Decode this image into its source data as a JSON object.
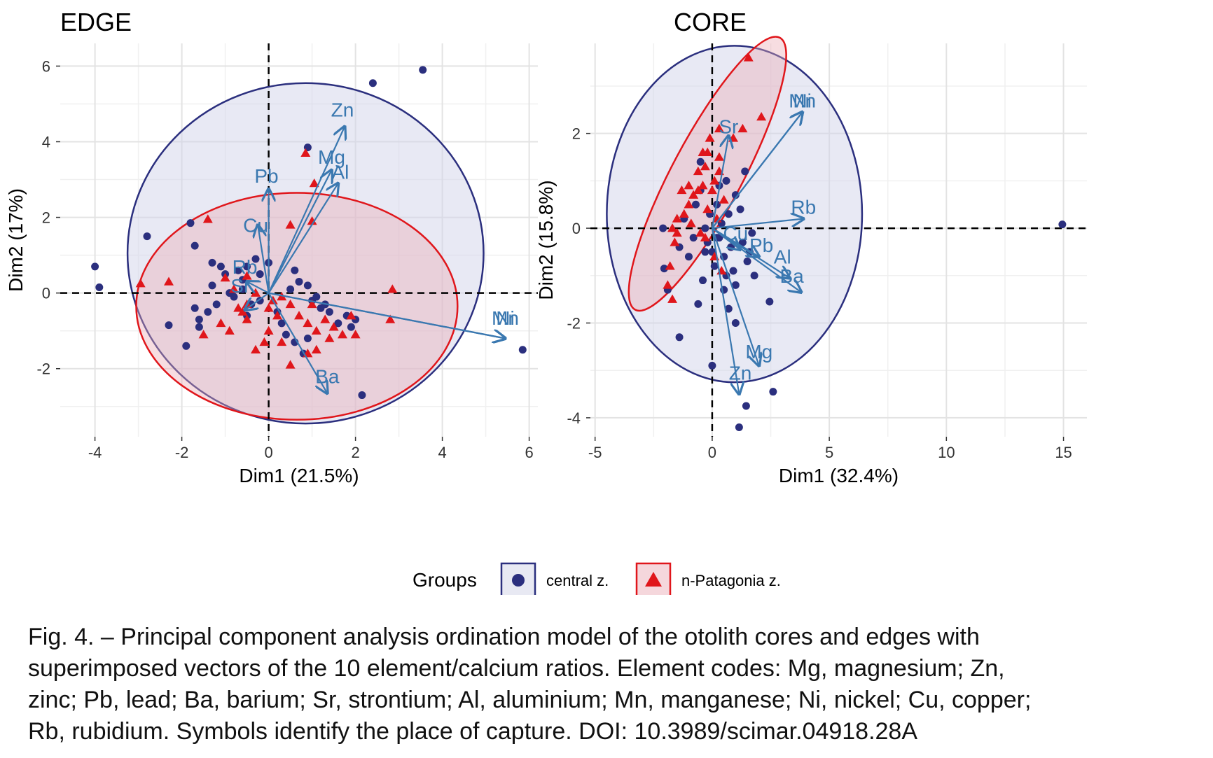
{
  "figure": {
    "legend": {
      "title": "Groups",
      "items": [
        {
          "label": "central z.",
          "color": "#2b2f7e",
          "fill": "#e8e9f3",
          "shape": "circle"
        },
        {
          "label": "n-Patagonia z.",
          "color": "#e0161b",
          "fill": "#f5d7dc",
          "shape": "triangle"
        }
      ]
    }
  },
  "chart_data": [
    {
      "type": "scatter",
      "title": "EDGE",
      "xlabel": "Dim1 (21.5%)",
      "ylabel": "Dim2 (17%)",
      "xlim": [
        -4.8,
        6.2
      ],
      "ylim": [
        -3.8,
        6.6
      ],
      "xticks": [
        -4,
        -2,
        0,
        2,
        4,
        6
      ],
      "yticks": [
        -2,
        0,
        2,
        4,
        6
      ],
      "xtick_labels": [
        "-4",
        "-2",
        "0",
        "2",
        "4",
        "6"
      ],
      "ytick_labels": [
        "-2",
        "0",
        "2",
        "4",
        "6"
      ],
      "grid": true,
      "series": [
        {
          "name": "central z.",
          "marker": "circle",
          "color": "#2b2f7e",
          "points": [
            [
              3.55,
              5.9
            ],
            [
              2.4,
              5.55
            ],
            [
              0.9,
              3.85
            ],
            [
              -2.8,
              1.5
            ],
            [
              -4.0,
              0.7
            ],
            [
              -3.9,
              0.15
            ],
            [
              -1.8,
              1.85
            ],
            [
              -1.7,
              1.25
            ],
            [
              -1.3,
              0.8
            ],
            [
              -1.1,
              0.7
            ],
            [
              -1.0,
              0.5
            ],
            [
              -0.7,
              0.6
            ],
            [
              -0.6,
              0.35
            ],
            [
              -0.5,
              0.7
            ],
            [
              -0.3,
              0.9
            ],
            [
              -0.2,
              0.5
            ],
            [
              0.0,
              0.8
            ],
            [
              0.5,
              0.1
            ],
            [
              0.6,
              0.6
            ],
            [
              0.7,
              0.3
            ],
            [
              0.9,
              0.2
            ],
            [
              1.0,
              -0.2
            ],
            [
              1.1,
              -0.1
            ],
            [
              1.2,
              -0.4
            ],
            [
              1.3,
              -0.3
            ],
            [
              1.4,
              -0.5
            ],
            [
              1.6,
              -0.8
            ],
            [
              1.8,
              -0.6
            ],
            [
              1.9,
              -0.9
            ],
            [
              2.0,
              -0.7
            ],
            [
              0.2,
              -0.5
            ],
            [
              0.3,
              -0.8
            ],
            [
              0.4,
              -1.1
            ],
            [
              0.6,
              -1.3
            ],
            [
              0.8,
              -1.6
            ],
            [
              0.9,
              -1.2
            ],
            [
              -0.2,
              -0.2
            ],
            [
              -0.4,
              -0.3
            ],
            [
              -0.5,
              -0.6
            ],
            [
              -0.8,
              -0.1
            ],
            [
              -1.2,
              -0.3
            ],
            [
              -1.4,
              -0.5
            ],
            [
              -1.6,
              -0.7
            ],
            [
              -1.7,
              -0.4
            ],
            [
              -1.3,
              0.2
            ],
            [
              -0.9,
              0.0
            ],
            [
              -0.6,
              0.1
            ],
            [
              -2.3,
              -0.85
            ],
            [
              -1.9,
              -1.4
            ],
            [
              -1.6,
              -0.9
            ],
            [
              2.15,
              -2.7
            ],
            [
              5.85,
              -1.5
            ]
          ]
        },
        {
          "name": "n-Patagonia z.",
          "marker": "triangle",
          "color": "#e0161b",
          "points": [
            [
              0.85,
              3.7
            ],
            [
              1.05,
              2.9
            ],
            [
              -1.4,
              1.95
            ],
            [
              0.5,
              1.8
            ],
            [
              1.0,
              1.9
            ],
            [
              -2.3,
              0.3
            ],
            [
              -2.95,
              0.25
            ],
            [
              -1.5,
              -1.1
            ],
            [
              -1.0,
              0.4
            ],
            [
              -0.8,
              0.1
            ],
            [
              -0.5,
              0.45
            ],
            [
              -0.3,
              0.0
            ],
            [
              0.0,
              -0.4
            ],
            [
              0.1,
              -0.2
            ],
            [
              0.3,
              -0.1
            ],
            [
              0.5,
              -0.3
            ],
            [
              0.7,
              -0.6
            ],
            [
              0.9,
              -0.8
            ],
            [
              1.1,
              -1.0
            ],
            [
              1.3,
              -0.7
            ],
            [
              1.5,
              -0.9
            ],
            [
              1.7,
              -1.1
            ],
            [
              1.9,
              -0.6
            ],
            [
              2.0,
              -1.1
            ],
            [
              2.8,
              -0.7
            ],
            [
              2.85,
              0.1
            ],
            [
              1.1,
              -1.5
            ],
            [
              0.9,
              -1.6
            ],
            [
              0.5,
              -1.9
            ],
            [
              0.3,
              -1.3
            ],
            [
              0.0,
              -1.0
            ],
            [
              -0.1,
              -1.3
            ],
            [
              -0.3,
              -1.5
            ],
            [
              -0.5,
              -0.7
            ],
            [
              -0.7,
              -0.4
            ],
            [
              -0.9,
              -1.0
            ],
            [
              -1.1,
              -0.8
            ],
            [
              -0.5,
              -0.3
            ],
            [
              -0.6,
              -0.5
            ],
            [
              0.2,
              -0.6
            ],
            [
              1.0,
              -0.3
            ],
            [
              1.4,
              -1.2
            ]
          ]
        }
      ],
      "ellipses": [
        {
          "group": "central z.",
          "center": [
            0.85,
            1.05
          ],
          "rx": 4.1,
          "ry": 4.5
        },
        {
          "group": "n-Patagonia z.",
          "center": [
            0.65,
            -0.35
          ],
          "rx": 3.7,
          "ry": 3.0
        }
      ],
      "vectors": [
        {
          "label": "Zn",
          "x": 1.75,
          "y": 4.4,
          "lx": 1.7,
          "ly": 4.85
        },
        {
          "label": "Mg",
          "x": 1.45,
          "y": 3.25,
          "lx": 1.45,
          "ly": 3.6
        },
        {
          "label": "Al",
          "x": 1.6,
          "y": 2.9,
          "lx": 1.65,
          "ly": 3.2
        },
        {
          "label": "Pb",
          "x": 0.0,
          "y": 2.75,
          "lx": -0.05,
          "ly": 3.1
        },
        {
          "label": "Cu",
          "x": -0.25,
          "y": 1.8,
          "lx": -0.3,
          "ly": 1.8
        },
        {
          "label": "Rb",
          "x": -0.5,
          "y": 0.3,
          "lx": -0.55,
          "ly": 0.7
        },
        {
          "label": "Sr",
          "x": -0.55,
          "y": -0.45,
          "lx": -0.65,
          "ly": 0.2
        },
        {
          "label": "Ni",
          "x": 5.45,
          "y": -1.2,
          "lx": 5.45,
          "ly": -0.65
        },
        {
          "label": "Mn",
          "x": 5.45,
          "y": -1.2,
          "lx": 5.45,
          "ly": -0.65
        },
        {
          "label": "Ba",
          "x": 1.35,
          "y": -2.65,
          "lx": 1.35,
          "ly": -2.2
        }
      ]
    },
    {
      "type": "scatter",
      "title": "CORE",
      "xlabel": "Dim1 (32.4%)",
      "ylabel": "Dim2 (15.8%)",
      "xlim": [
        -5.2,
        16.0
      ],
      "ylim": [
        -4.4,
        3.9
      ],
      "xticks": [
        -5,
        0,
        5,
        10,
        15
      ],
      "yticks": [
        -4,
        -2,
        0,
        2
      ],
      "xtick_labels": [
        "-5",
        "0",
        "5",
        "10",
        "15"
      ],
      "ytick_labels": [
        "-4",
        "-2",
        "0",
        "2"
      ],
      "grid": true,
      "series": [
        {
          "name": "central z.",
          "marker": "circle",
          "color": "#2b2f7e",
          "points": [
            [
              14.95,
              0.08
            ],
            [
              -2.1,
              0.0
            ],
            [
              -2.05,
              -0.85
            ],
            [
              -1.9,
              -1.3
            ],
            [
              -1.4,
              -0.4
            ],
            [
              -1.2,
              0.2
            ],
            [
              -1.0,
              -0.6
            ],
            [
              -0.8,
              -0.2
            ],
            [
              -0.7,
              0.5
            ],
            [
              -0.6,
              -1.6
            ],
            [
              -0.5,
              0.8
            ],
            [
              -0.4,
              -1.1
            ],
            [
              -0.3,
              -0.5
            ],
            [
              -0.2,
              -0.3
            ],
            [
              -0.1,
              0.3
            ],
            [
              0.0,
              -0.5
            ],
            [
              0.1,
              -0.8
            ],
            [
              0.2,
              0.5
            ],
            [
              0.3,
              -0.2
            ],
            [
              0.4,
              0.1
            ],
            [
              0.5,
              -0.6
            ],
            [
              0.6,
              -1.0
            ],
            [
              0.8,
              -0.4
            ],
            [
              1.0,
              0.7
            ],
            [
              1.2,
              0.4
            ],
            [
              1.3,
              -0.3
            ],
            [
              1.5,
              -0.7
            ],
            [
              1.7,
              -0.1
            ],
            [
              1.8,
              -1.0
            ],
            [
              0.5,
              -1.3
            ],
            [
              0.7,
              -1.7
            ],
            [
              1.0,
              -2.0
            ],
            [
              0.9,
              -0.9
            ],
            [
              1.4,
              1.2
            ],
            [
              0.6,
              1.0
            ],
            [
              0.3,
              0.9
            ],
            [
              -0.5,
              1.4
            ],
            [
              0.0,
              -2.9
            ],
            [
              1.15,
              -4.2
            ],
            [
              1.45,
              -3.75
            ],
            [
              2.6,
              -3.45
            ],
            [
              2.45,
              -1.55
            ],
            [
              -1.4,
              -2.3
            ],
            [
              1.6,
              -0.5
            ],
            [
              -0.3,
              0.0
            ],
            [
              0.2,
              -0.2
            ],
            [
              0.7,
              0.3
            ],
            [
              1.0,
              -1.2
            ]
          ]
        },
        {
          "name": "n-Patagonia z.",
          "marker": "triangle",
          "color": "#e0161b",
          "points": [
            [
              1.55,
              3.6
            ],
            [
              2.1,
              2.35
            ],
            [
              1.3,
              2.1
            ],
            [
              0.3,
              2.1
            ],
            [
              0.9,
              1.9
            ],
            [
              -0.2,
              1.6
            ],
            [
              0.3,
              1.5
            ],
            [
              -0.3,
              1.3
            ],
            [
              -0.6,
              1.2
            ],
            [
              0.1,
              1.0
            ],
            [
              -0.4,
              0.9
            ],
            [
              -0.8,
              0.7
            ],
            [
              -1.0,
              0.5
            ],
            [
              -1.2,
              0.3
            ],
            [
              -1.5,
              0.2
            ],
            [
              -1.7,
              0.0
            ],
            [
              -1.6,
              -0.3
            ],
            [
              -1.8,
              -0.8
            ],
            [
              -1.7,
              -1.5
            ],
            [
              -1.9,
              -1.2
            ],
            [
              -0.9,
              0.1
            ],
            [
              -0.5,
              -0.1
            ],
            [
              -0.2,
              0.4
            ],
            [
              0.0,
              0.8
            ],
            [
              0.2,
              0.2
            ],
            [
              0.5,
              0.6
            ],
            [
              0.3,
              1.2
            ],
            [
              -0.1,
              1.9
            ],
            [
              -0.4,
              1.6
            ],
            [
              -0.6,
              0.8
            ],
            [
              -1.3,
              0.8
            ],
            [
              -1.5,
              -0.1
            ],
            [
              0.4,
              -0.9
            ],
            [
              0.1,
              -0.6
            ],
            [
              -0.3,
              -0.2
            ],
            [
              -1.0,
              0.9
            ]
          ]
        }
      ],
      "ellipses": [
        {
          "group": "central z.",
          "center": [
            0.95,
            0.3
          ],
          "rx": 5.45,
          "ry": 3.55,
          "angle": 0
        },
        {
          "group": "n-Patagonia z.",
          "center": [
            -0.2,
            1.15
          ],
          "rx": 1.5,
          "ry": 3.25,
          "angle": 28
        }
      ],
      "vectors": [
        {
          "label": "Ni",
          "x": 3.85,
          "y": 2.45,
          "lx": 3.85,
          "ly": 2.7
        },
        {
          "label": "Mn",
          "x": 3.85,
          "y": 2.45,
          "lx": 3.85,
          "ly": 2.7
        },
        {
          "label": "Sr",
          "x": 0.7,
          "y": 1.95,
          "lx": 0.7,
          "ly": 2.15
        },
        {
          "label": "Rb",
          "x": 3.9,
          "y": 0.2,
          "lx": 3.9,
          "ly": 0.45
        },
        {
          "label": "Cu",
          "x": 1.2,
          "y": -0.45,
          "lx": 1.0,
          "ly": -0.1
        },
        {
          "label": "Pb",
          "x": 2.0,
          "y": -0.6,
          "lx": 2.1,
          "ly": -0.35
        },
        {
          "label": "Al",
          "x": 3.3,
          "y": -1.05,
          "lx": 3.0,
          "ly": -0.6
        },
        {
          "label": "Ba",
          "x": 3.8,
          "y": -1.35,
          "lx": 3.4,
          "ly": -1.0
        },
        {
          "label": "Mg",
          "x": 2.0,
          "y": -2.9,
          "lx": 2.0,
          "ly": -2.6
        },
        {
          "label": "Zn",
          "x": 1.15,
          "y": -3.5,
          "lx": 1.2,
          "ly": -3.05
        }
      ]
    }
  ],
  "caption": {
    "lines": [
      "Fig. 4. – Principal component analysis ordination model of the otolith cores and edges with",
      "superimposed vectors of the 10 element/calcium ratios. Element codes: Mg, magnesium; Zn,",
      "zinc; Pb, lead; Ba, barium; Sr, strontium; Al, aluminium; Mn, manganese; Ni, nickel; Cu, copper;",
      "Rb, rubidium. Symbols identify the place of capture. DOI: 10.3989/scimar.04918.28A"
    ]
  }
}
